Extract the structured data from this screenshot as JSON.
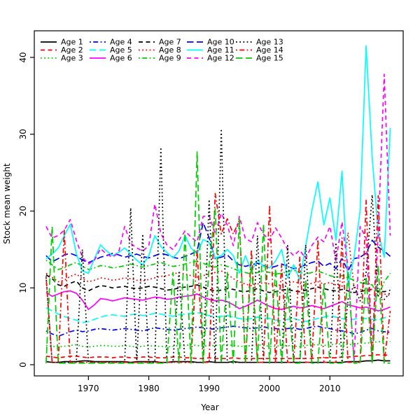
{
  "chart_data": {
    "type": "line",
    "title": "",
    "xlabel": "Year",
    "ylabel": "Stock mean weight",
    "x_ticks": [
      1970,
      1980,
      1990,
      2000,
      2010
    ],
    "y_ticks": [
      0,
      10,
      20,
      30,
      40
    ],
    "xlim": [
      1961,
      2022.1
    ],
    "ylim": [
      -1.5,
      43.5
    ],
    "grid": false,
    "legend_position": "top-inside",
    "legend_columns": 5,
    "x": [
      1963,
      1964,
      1965,
      1966,
      1967,
      1968,
      1969,
      1970,
      1971,
      1972,
      1973,
      1974,
      1975,
      1976,
      1977,
      1978,
      1979,
      1980,
      1981,
      1982,
      1983,
      1984,
      1985,
      1986,
      1987,
      1988,
      1989,
      1990,
      1991,
      1992,
      1993,
      1994,
      1995,
      1996,
      1997,
      1998,
      1999,
      2000,
      2001,
      2002,
      2003,
      2004,
      2005,
      2006,
      2007,
      2008,
      2009,
      2010,
      2011,
      2012,
      2013,
      2014,
      2015,
      2016,
      2017,
      2018,
      2019,
      2020
    ],
    "series": [
      {
        "name": "Age 1",
        "color": "#000000",
        "linetype": "solid",
        "values": [
          0.4,
          0.3,
          0.3,
          0.4,
          0.4,
          0.4,
          0.5,
          0.5,
          0.4,
          0.4,
          0.4,
          0.4,
          0.4,
          0.4,
          0.3,
          0.4,
          0.4,
          0.4,
          0.4,
          0.3,
          0.3,
          0.4,
          0.4,
          0.4,
          0.4,
          0.3,
          0.3,
          0.4,
          0.3,
          0.3,
          0.3,
          0.4,
          0.3,
          0.3,
          0.3,
          0.3,
          0.3,
          0.3,
          0.3,
          0.3,
          0.3,
          0.3,
          0.3,
          0.3,
          0.3,
          0.3,
          0.3,
          0.3,
          0.3,
          0.3,
          0.4,
          0.4,
          0.4,
          0.5,
          0.5,
          0.6,
          0.5,
          0.5
        ]
      },
      {
        "name": "Age 2",
        "color": "#FF0000",
        "linetype": "dashed",
        "values": [
          1.1,
          1.0,
          0.9,
          1.0,
          1.1,
          1.1,
          1.0,
          0.9,
          1.0,
          1.0,
          1.0,
          0.9,
          1.0,
          1.0,
          0.9,
          0.9,
          1.0,
          1.0,
          0.9,
          0.9,
          0.9,
          1.0,
          1.0,
          0.9,
          0.9,
          0.8,
          0.8,
          0.9,
          0.8,
          0.8,
          0.8,
          0.9,
          0.8,
          0.8,
          0.8,
          0.8,
          0.8,
          0.8,
          0.8,
          0.8,
          0.8,
          0.8,
          0.8,
          0.8,
          0.8,
          0.9,
          0.9,
          0.9,
          0.9,
          1.0,
          1.0,
          1.1,
          1.1,
          1.2,
          1.2,
          1.3,
          1.2,
          1.3
        ]
      },
      {
        "name": "Age 3",
        "color": "#00CD00",
        "linetype": "dotted",
        "values": [
          2.5,
          2.4,
          2.3,
          2.4,
          2.5,
          2.6,
          2.4,
          2.3,
          2.4,
          2.5,
          2.5,
          2.4,
          2.4,
          2.5,
          2.4,
          2.3,
          2.4,
          2.5,
          2.4,
          2.4,
          2.3,
          2.4,
          2.5,
          2.5,
          2.6,
          2.5,
          2.4,
          2.5,
          2.5,
          2.6,
          2.6,
          2.5,
          2.4,
          2.4,
          2.5,
          2.6,
          2.5,
          2.4,
          2.4,
          2.5,
          2.5,
          2.4,
          2.4,
          2.5,
          2.6,
          2.6,
          2.5,
          2.6,
          2.7,
          2.7,
          2.6,
          2.7,
          2.8,
          2.8,
          2.9,
          3.0,
          3.0,
          3.0
        ]
      },
      {
        "name": "Age 4",
        "color": "#0000FF",
        "linetype": "dotdash",
        "values": [
          4.4,
          4.0,
          3.7,
          4.0,
          4.3,
          4.5,
          4.3,
          4.4,
          4.6,
          4.7,
          4.6,
          4.5,
          4.6,
          4.7,
          4.6,
          4.5,
          4.4,
          4.6,
          4.8,
          4.7,
          4.6,
          4.5,
          4.6,
          4.7,
          4.8,
          4.9,
          4.8,
          4.7,
          4.6,
          4.8,
          4.9,
          5.0,
          4.9,
          4.8,
          4.7,
          4.8,
          4.9,
          4.8,
          4.7,
          4.6,
          4.7,
          4.8,
          4.6,
          4.7,
          4.9,
          5.0,
          4.8,
          4.7,
          4.5,
          4.4,
          4.3,
          4.0,
          4.2,
          4.5,
          4.7,
          4.4,
          4.3,
          4.2
        ]
      },
      {
        "name": "Age 5",
        "color": "#00FFFF",
        "linetype": "longdash",
        "values": [
          7.4,
          7.0,
          6.6,
          6.3,
          6.0,
          5.8,
          5.5,
          5.6,
          5.9,
          6.2,
          6.4,
          6.5,
          6.4,
          6.3,
          6.5,
          6.6,
          6.4,
          6.5,
          6.7,
          6.6,
          6.4,
          6.3,
          6.5,
          6.6,
          6.7,
          6.8,
          6.6,
          6.4,
          6.2,
          6.3,
          6.4,
          6.2,
          6.0,
          5.9,
          6.0,
          6.2,
          6.1,
          6.0,
          5.8,
          5.7,
          5.9,
          6.0,
          5.8,
          5.6,
          5.8,
          6.0,
          6.2,
          6.4,
          6.2,
          6.0,
          5.8,
          5.9,
          6.1,
          6.0,
          5.9,
          5.8,
          6.1,
          6.3
        ]
      },
      {
        "name": "Age 6",
        "color": "#FF00FF",
        "linetype": "solid",
        "values": [
          9.4,
          8.9,
          9.2,
          9.5,
          9.6,
          9.3,
          8.4,
          7.2,
          7.8,
          8.6,
          8.5,
          8.3,
          8.5,
          8.7,
          8.6,
          8.5,
          8.4,
          8.6,
          8.8,
          8.7,
          8.5,
          8.6,
          8.8,
          8.9,
          9.0,
          9.2,
          8.8,
          8.5,
          8.3,
          8.4,
          8.2,
          7.8,
          7.3,
          7.6,
          8.0,
          8.4,
          8.0,
          7.6,
          7.3,
          7.2,
          7.4,
          7.6,
          7.4,
          7.5,
          7.7,
          7.5,
          7.3,
          7.6,
          7.9,
          8.2,
          7.8,
          7.6,
          7.4,
          7.5,
          7.3,
          7.0,
          7.2,
          7.5
        ]
      },
      {
        "name": "Age 7",
        "color": "#000000",
        "linetype": "dashed",
        "values": [
          11.7,
          11.2,
          10.4,
          10.2,
          10.6,
          10.9,
          10.0,
          9.6,
          10.0,
          10.3,
          10.2,
          10.0,
          10.1,
          10.2,
          10.0,
          9.9,
          10.0,
          10.2,
          10.1,
          9.9,
          9.7,
          9.8,
          10.0,
          10.1,
          10.2,
          10.4,
          10.1,
          9.8,
          9.6,
          9.7,
          9.9,
          9.8,
          9.6,
          9.5,
          9.7,
          9.9,
          9.6,
          9.4,
          9.5,
          9.7,
          9.8,
          9.6,
          9.5,
          9.7,
          9.9,
          10.1,
          9.9,
          9.7,
          9.6,
          9.8,
          9.6,
          9.4,
          9.5,
          9.7,
          9.8,
          9.6,
          9.5,
          9.7
        ]
      },
      {
        "name": "Age 8",
        "color": "#FF0000",
        "linetype": "dotted",
        "values": [
          11.9,
          11.4,
          10.8,
          11.0,
          11.5,
          11.8,
          11.2,
          10.8,
          11.0,
          11.3,
          11.2,
          11.0,
          11.1,
          11.3,
          11.2,
          11.0,
          10.9,
          11.1,
          11.3,
          11.5,
          11.6,
          11.8,
          12.0,
          11.8,
          11.6,
          11.4,
          11.6,
          11.8,
          12.0,
          12.2,
          11.8,
          11.2,
          10.8,
          10.5,
          10.3,
          10.5,
          10.7,
          10.5,
          10.3,
          10.4,
          10.6,
          10.8,
          10.6,
          10.4,
          10.6,
          10.8,
          10.5,
          10.7,
          10.4,
          10.2,
          17.2,
          10.0,
          9.8,
          9.6,
          9.8,
          9.5,
          9.2,
          9.0
        ]
      },
      {
        "name": "Age 9",
        "color": "#00CD00",
        "linetype": "dotdash",
        "values": [
          13.6,
          13.0,
          12.4,
          12.6,
          13.0,
          13.3,
          12.8,
          12.4,
          12.6,
          12.9,
          12.8,
          12.6,
          12.7,
          12.9,
          13.1,
          12.9,
          12.7,
          12.9,
          13.1,
          13.3,
          13.0,
          12.8,
          12.9,
          13.1,
          13.3,
          13.5,
          13.2,
          12.9,
          12.7,
          13.0,
          12.8,
          12.5,
          12.2,
          12.0,
          11.8,
          12.0,
          12.2,
          12.0,
          11.8,
          11.9,
          12.1,
          12.3,
          12.0,
          11.8,
          12.0,
          12.2,
          11.9,
          11.6,
          11.4,
          11.6,
          11.3,
          11.0,
          10.7,
          10.5,
          10.4,
          8.9,
          10.8,
          11.9
        ]
      },
      {
        "name": "Age 10",
        "color": "#0000FF",
        "linetype": "longdash",
        "values": [
          14.2,
          13.4,
          13.8,
          14.3,
          14.5,
          14.2,
          13.6,
          13.3,
          13.6,
          14.0,
          14.2,
          14.5,
          14.3,
          14.0,
          14.2,
          14.4,
          14.1,
          13.9,
          14.2,
          14.5,
          14.3,
          14.0,
          13.8,
          14.1,
          14.4,
          14.8,
          18.5,
          16.5,
          13.8,
          14.0,
          14.3,
          13.5,
          13.0,
          12.8,
          13.0,
          13.2,
          12.9,
          12.6,
          12.8,
          13.1,
          12.8,
          12.5,
          12.7,
          13.0,
          13.3,
          13.5,
          12.8,
          13.2,
          12.5,
          13.8,
          12.2,
          13.8,
          14.0,
          14.5,
          16.2,
          15.3,
          14.8,
          14.1
        ]
      },
      {
        "name": "Age 11",
        "color": "#00FFFF",
        "linetype": "solid",
        "values": [
          13.8,
          14.4,
          15.2,
          16.8,
          18.3,
          14.5,
          12.2,
          11.9,
          13.8,
          15.6,
          14.8,
          14.2,
          14.6,
          15.2,
          14.4,
          13.6,
          13.0,
          14.2,
          16.8,
          15.4,
          14.6,
          13.9,
          14.8,
          16.8,
          15.2,
          14.4,
          16.3,
          15.9,
          13.9,
          14.2,
          15.0,
          14.2,
          11.9,
          14.2,
          12.2,
          13.6,
          12.8,
          12.6,
          13.5,
          15.0,
          11.3,
          13.0,
          11.0,
          15.5,
          20.0,
          23.8,
          18.2,
          21.7,
          16.2,
          25.2,
          10.3,
          14.0,
          20.0,
          41.5,
          27.0,
          17.3,
          14.0,
          30.8
        ]
      },
      {
        "name": "Age 12",
        "color": "#FF00FF",
        "linetype": "dashed",
        "values": [
          18.0,
          16.5,
          16.8,
          17.5,
          18.9,
          16.2,
          14.0,
          13.1,
          13.6,
          15.1,
          14.4,
          14.0,
          14.6,
          18.0,
          15.8,
          15.2,
          14.8,
          15.5,
          20.9,
          17.1,
          15.6,
          15.0,
          16.2,
          17.4,
          16.6,
          16.0,
          19.3,
          19.4,
          17.0,
          19.7,
          18.2,
          15.5,
          19.3,
          16.4,
          16.0,
          18.5,
          17.0,
          16.2,
          17.8,
          16.5,
          15.0,
          14.2,
          14.9,
          13.8,
          15.5,
          16.6,
          16.0,
          18.0,
          13.5,
          18.6,
          12.6,
          0.4,
          18.0,
          16.5,
          0.3,
          17.2,
          37.8,
          16.8
        ]
      },
      {
        "name": "Age 13",
        "color": "#000000",
        "linetype": "dotted",
        "values": [
          11.5,
          0.3,
          0.3,
          0.3,
          0.3,
          0.3,
          15.0,
          0.3,
          0.3,
          0.3,
          0.3,
          0.3,
          0.3,
          0.3,
          20.4,
          0.3,
          17.0,
          0.3,
          0.3,
          28.3,
          0.3,
          0.3,
          12.0,
          0.3,
          0.3,
          0.3,
          0.3,
          21.5,
          0.3,
          30.7,
          0.3,
          0.3,
          0.3,
          0.3,
          0.3,
          16.8,
          0.3,
          0.3,
          0.3,
          0.3,
          15.5,
          0.3,
          0.3,
          15.6,
          0.3,
          0.3,
          0.3,
          0.3,
          15.9,
          0.3,
          8.5,
          10.4,
          8.3,
          12.0,
          22.1,
          9.0,
          8.5,
          9.4
        ]
      },
      {
        "name": "Age 14",
        "color": "#FF0000",
        "linetype": "dotdash",
        "values": [
          11.3,
          0.3,
          0.3,
          17.5,
          0.3,
          0.3,
          0.3,
          0.3,
          0.3,
          0.3,
          0.3,
          0.3,
          0.3,
          0.3,
          0.3,
          0.3,
          0.3,
          0.3,
          0.3,
          0.3,
          0.3,
          0.3,
          0.3,
          0.3,
          0.3,
          15.0,
          0.3,
          0.3,
          22.3,
          17.0,
          19.0,
          17.0,
          18.8,
          0.3,
          15.0,
          0.3,
          0.3,
          20.8,
          0.3,
          13.0,
          0.3,
          0.3,
          14.0,
          0.3,
          0.3,
          16.3,
          0.3,
          0.3,
          0.3,
          16.5,
          0.3,
          0.3,
          0.3,
          21.4,
          0.3,
          22.0,
          0.3,
          7.0
        ]
      },
      {
        "name": "Age 15",
        "color": "#00CD00",
        "linetype": "longdash",
        "values": [
          0.2,
          18.0,
          0.2,
          0.2,
          0.2,
          0.2,
          0.2,
          0.2,
          0.2,
          0.2,
          0.2,
          0.2,
          0.2,
          0.2,
          0.2,
          0.2,
          0.2,
          0.2,
          0.2,
          0.2,
          0.2,
          12.0,
          0.2,
          17.1,
          0.2,
          27.7,
          0.2,
          13.0,
          20.3,
          0.2,
          12.0,
          0.2,
          19.0,
          0.2,
          13.5,
          0.2,
          18.3,
          0.2,
          12.5,
          0.2,
          10.0,
          0.2,
          0.2,
          11.0,
          0.2,
          0.2,
          10.5,
          0.2,
          0.2,
          0.2,
          12.2,
          0.2,
          0.2,
          11.5,
          0.2,
          12.9,
          0.2,
          0.2
        ]
      }
    ]
  }
}
